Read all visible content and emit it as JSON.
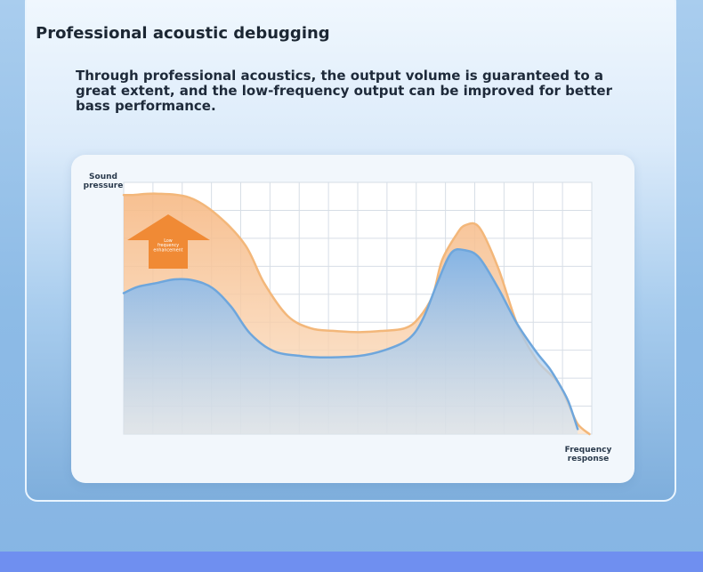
{
  "heading": "Professional acoustic debugging",
  "description": "Through professional acoustics, the output volume is guaranteed to a great extent, and the low-frequency output can be improved for better bass performance.",
  "chart_data": {
    "type": "area",
    "ylabel": [
      "Sound",
      "pressure"
    ],
    "xlabel": [
      "Frequency",
      "response"
    ],
    "xlim": [
      0,
      100
    ],
    "ylim": [
      0,
      100
    ],
    "grid": true,
    "annotation": {
      "text": [
        "Low",
        "frequency",
        "enhancement"
      ],
      "marker": "up-arrow",
      "color": "#f08a35"
    },
    "series": [
      {
        "color": "#f3b77a",
        "x": [
          0,
          2,
          7,
          14,
          20,
          26,
          30,
          35,
          40,
          45,
          50,
          55,
          60,
          63,
          66,
          68,
          71,
          73,
          76,
          80,
          84,
          88,
          91,
          93,
          95,
          97,
          99.5
        ],
        "y": [
          95,
          95,
          95.5,
          94,
          87,
          75,
          60,
          47,
          42,
          41,
          40.5,
          41,
          42,
          46,
          55,
          69,
          79,
          83,
          82,
          66,
          44,
          30,
          24,
          20,
          12,
          4,
          0
        ]
      },
      {
        "color": "#6ea6dc",
        "x": [
          0,
          3,
          7,
          11,
          15,
          19,
          23,
          27,
          32,
          38,
          42,
          50,
          56,
          61,
          64,
          67,
          70,
          73,
          76,
          80,
          84,
          88,
          91,
          93,
          95,
          97
        ],
        "y": [
          56,
          58.5,
          60,
          61.5,
          61,
          58,
          50.5,
          40,
          33,
          31,
          30.5,
          31,
          33.5,
          38,
          46,
          60,
          72,
          73,
          70,
          58,
          44,
          33,
          26,
          20,
          13,
          2
        ]
      }
    ]
  }
}
